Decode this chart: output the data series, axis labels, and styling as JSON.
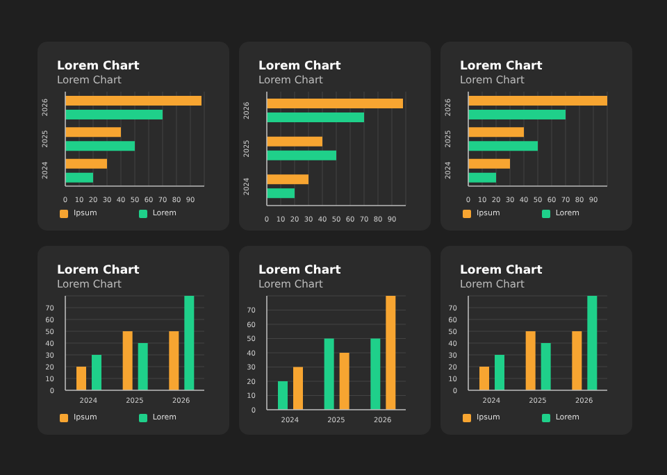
{
  "chart_data": [
    {
      "type": "bar",
      "title": "Lorem Chart",
      "subtitle": "Lorem Chart",
      "orientation": "horizontal",
      "categories": [
        "2026",
        "2025",
        "2024"
      ],
      "series": [
        {
          "name": "Ipsum",
          "color": "#f7a531",
          "values": [
            98,
            40,
            30
          ]
        },
        {
          "name": "Lorem",
          "color": "#1fd08a",
          "values": [
            70,
            50,
            20
          ]
        }
      ],
      "xlim": [
        0,
        100
      ],
      "xticks": [
        0,
        10,
        20,
        30,
        40,
        50,
        60,
        70,
        80,
        90
      ],
      "grid": "x",
      "legend": "bottom"
    },
    {
      "type": "bar",
      "title": "Lorem Chart",
      "subtitle": "Lorem Chart",
      "orientation": "horizontal",
      "categories": [
        "2026",
        "2025",
        "2024"
      ],
      "series": [
        {
          "color": "#f7a531",
          "values": [
            98,
            40,
            30
          ]
        },
        {
          "color": "#1fd08a",
          "values": [
            70,
            50,
            20
          ]
        }
      ],
      "xlim": [
        0,
        100
      ],
      "xticks": [
        0,
        10,
        20,
        30,
        40,
        50,
        60,
        70,
        80,
        90
      ],
      "grid": "x"
    },
    {
      "type": "bar",
      "title": "Lorem Chart",
      "subtitle": "Lorem Chart",
      "orientation": "horizontal",
      "categories": [
        "2026",
        "2025",
        "2024"
      ],
      "series": [
        {
          "name": "Ipsum",
          "color": "#f7a531",
          "values": [
            100,
            40,
            30
          ]
        },
        {
          "name": "Lorem",
          "color": "#1fd08a",
          "values": [
            70,
            50,
            20
          ]
        }
      ],
      "xlim": [
        0,
        100
      ],
      "xticks": [
        0,
        10,
        20,
        30,
        40,
        50,
        60,
        70,
        80,
        90
      ],
      "grid": "x",
      "legend": "bottom"
    },
    {
      "type": "bar",
      "title": "Lorem Chart",
      "subtitle": "Lorem Chart",
      "categories": [
        "2024",
        "2025",
        "2026"
      ],
      "series": [
        {
          "name": "Ipsum",
          "color": "#f7a531",
          "values": [
            20,
            50,
            50
          ]
        },
        {
          "name": "Lorem",
          "color": "#1fd08a",
          "values": [
            30,
            40,
            80
          ]
        }
      ],
      "ylim": [
        0,
        80
      ],
      "yticks": [
        0,
        10,
        20,
        30,
        40,
        50,
        60,
        70
      ],
      "grid": "y",
      "legend": "bottom"
    },
    {
      "type": "bar",
      "title": "Lorem Chart",
      "subtitle": "Lorem Chart",
      "categories": [
        "2024",
        "2025",
        "2026"
      ],
      "series": [
        {
          "color": "#1fd08a",
          "values": [
            20,
            50,
            50
          ]
        },
        {
          "color": "#f7a531",
          "values": [
            30,
            40,
            80
          ]
        }
      ],
      "ylim": [
        0,
        80
      ],
      "yticks": [
        0,
        10,
        20,
        30,
        40,
        50,
        60,
        70
      ],
      "grid": "y"
    },
    {
      "type": "bar",
      "title": "Lorem Chart",
      "subtitle": "Lorem Chart",
      "categories": [
        "2024",
        "2025",
        "2026"
      ],
      "series": [
        {
          "name": "Ipsum",
          "color": "#f7a531",
          "values": [
            20,
            50,
            50
          ]
        },
        {
          "name": "Lorem",
          "color": "#1fd08a",
          "values": [
            30,
            40,
            80
          ]
        }
      ],
      "ylim": [
        0,
        80
      ],
      "yticks": [
        0,
        10,
        20,
        30,
        40,
        50,
        60,
        70
      ],
      "grid": "y",
      "legend": "bottom"
    }
  ]
}
